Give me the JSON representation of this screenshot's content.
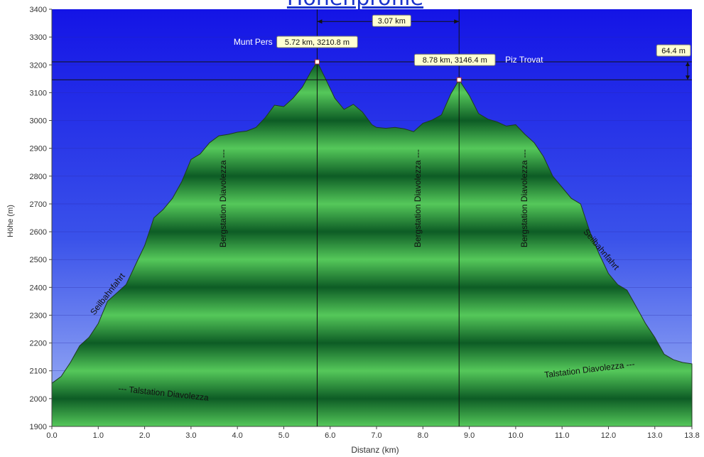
{
  "page": {
    "title": "Höhenprofile"
  },
  "chart_data": {
    "type": "area",
    "xlabel": "Distanz  (km)",
    "ylabel": "Höhe (m)",
    "xlim": [
      0.0,
      13.8
    ],
    "ylim": [
      1900,
      3400
    ],
    "x_ticks": [
      0.0,
      1.0,
      2.0,
      3.0,
      4.0,
      5.0,
      6.0,
      7.0,
      8.0,
      9.0,
      10.0,
      11.0,
      12.0,
      13.0,
      13.8
    ],
    "x_tick_labels": [
      "0.0",
      "1.0",
      "2.0",
      "3.0",
      "4.0",
      "5.0",
      "6.0",
      "7.0",
      "8.0",
      "9.0",
      "10.0",
      "11.0",
      "12.0",
      "13.0",
      "13.8"
    ],
    "y_ticks": [
      1900,
      2000,
      2100,
      2200,
      2300,
      2400,
      2500,
      2600,
      2700,
      2800,
      2900,
      3000,
      3100,
      3200,
      3300,
      3400
    ],
    "profile": {
      "x": [
        0.0,
        0.2,
        0.4,
        0.6,
        0.8,
        1.0,
        1.2,
        1.4,
        1.6,
        1.8,
        2.0,
        2.2,
        2.4,
        2.6,
        2.8,
        3.0,
        3.2,
        3.4,
        3.6,
        3.8,
        4.0,
        4.2,
        4.4,
        4.6,
        4.8,
        5.0,
        5.2,
        5.4,
        5.6,
        5.72,
        5.9,
        6.1,
        6.3,
        6.5,
        6.7,
        6.9,
        7.0,
        7.2,
        7.4,
        7.6,
        7.8,
        8.0,
        8.2,
        8.4,
        8.6,
        8.78,
        9.0,
        9.2,
        9.4,
        9.6,
        9.8,
        10.0,
        10.2,
        10.4,
        10.6,
        10.8,
        11.0,
        11.2,
        11.4,
        11.6,
        11.8,
        12.0,
        12.2,
        12.4,
        12.6,
        12.8,
        13.0,
        13.2,
        13.4,
        13.6,
        13.8
      ],
      "y": [
        2055,
        2080,
        2130,
        2190,
        2220,
        2270,
        2350,
        2380,
        2410,
        2480,
        2550,
        2650,
        2680,
        2720,
        2780,
        2860,
        2880,
        2920,
        2945,
        2950,
        2958,
        2962,
        2975,
        3010,
        3055,
        3050,
        3080,
        3120,
        3180,
        3210.8,
        3150,
        3080,
        3040,
        3058,
        3030,
        2985,
        2975,
        2972,
        2975,
        2970,
        2960,
        2990,
        3002,
        3020,
        3095,
        3146.4,
        3090,
        3025,
        3005,
        2995,
        2980,
        2985,
        2950,
        2920,
        2870,
        2800,
        2760,
        2720,
        2700,
        2600,
        2520,
        2450,
        2410,
        2390,
        2330,
        2270,
        2220,
        2160,
        2140,
        2130,
        2125
      ]
    },
    "annotations": [
      {
        "label": "Munt Pers",
        "text": "5.72 km, 3210.8 m",
        "x": 5.72,
        "y": 3210.8
      },
      {
        "label": "Piz Trovat",
        "text": "8.78 km, 3146.4 m",
        "x": 8.78,
        "y": 3146.4
      },
      {
        "text": "3.07 km",
        "from_x": 5.72,
        "to_x": 8.78,
        "y": 3356
      },
      {
        "text": "64.4 m",
        "from_y": 3146.4,
        "to_y": 3210.8
      }
    ],
    "segment_labels": [
      {
        "text": "--- Talstation Diavolezza",
        "x": 2.4,
        "y": 2010,
        "rotate": 6
      },
      {
        "text": "Seilbahnfahrt",
        "x": 1.25,
        "y": 2370,
        "rotate": -52
      },
      {
        "text": "Bergstation Diavolezza ---",
        "x": 3.75,
        "y": 2720,
        "rotate": -90
      },
      {
        "text": "Bergstation Diavolezza ---",
        "x": 7.95,
        "y": 2720,
        "rotate": -90
      },
      {
        "text": "Bergstation Diavolezza ---",
        "x": 10.25,
        "y": 2720,
        "rotate": -90
      },
      {
        "text": "Seilbahnfahrt",
        "x": 11.8,
        "y": 2530,
        "rotate": 50
      },
      {
        "text": "Talstation Diavolezza ---",
        "x": 11.6,
        "y": 2095,
        "rotate": -7
      }
    ],
    "grid": true,
    "colors": {
      "sky_top": "#1414e6",
      "sky_bottom": "#a5b9f5",
      "terrain_light": "#55c85a",
      "terrain_dark": "#0d5c25",
      "callout_bg": "#ffffd2"
    }
  }
}
